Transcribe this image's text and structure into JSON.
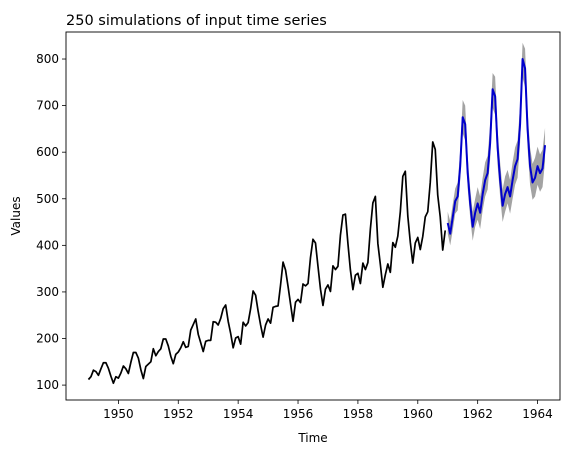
{
  "chart_data": {
    "type": "line",
    "title": "250 simulations of input time series",
    "xlabel": "Time",
    "ylabel": "Values",
    "xlim": [
      1948.25,
      1964.75
    ],
    "ylim": [
      68,
      858
    ],
    "xticks": [
      1950,
      1952,
      1954,
      1956,
      1958,
      1960,
      1962,
      1964
    ],
    "yticks": [
      100,
      200,
      300,
      400,
      500,
      600,
      700,
      800
    ],
    "grid": false,
    "legend": "none",
    "series": [
      {
        "role": "observed",
        "color": "#000000",
        "x_start": 1949.0,
        "x_step": 0.08333,
        "values": [
          112,
          118,
          132,
          129,
          121,
          135,
          148,
          148,
          136,
          119,
          104,
          118,
          115,
          126,
          141,
          135,
          125,
          149,
          170,
          170,
          158,
          133,
          114,
          140,
          145,
          150,
          178,
          163,
          172,
          178,
          199,
          199,
          184,
          162,
          146,
          166,
          171,
          180,
          193,
          181,
          183,
          218,
          230,
          242,
          209,
          191,
          172,
          194,
          196,
          196,
          236,
          235,
          229,
          243,
          264,
          272,
          237,
          211,
          180,
          201,
          204,
          188,
          235,
          227,
          234,
          264,
          302,
          293,
          259,
          229,
          203,
          229,
          242,
          233,
          267,
          269,
          270,
          315,
          364,
          347,
          312,
          274,
          237,
          278,
          284,
          277,
          317,
          313,
          318,
          374,
          413,
          405,
          355,
          306,
          271,
          306,
          315,
          301,
          356,
          348,
          355,
          422,
          465,
          467,
          404,
          347,
          305,
          336,
          340,
          318,
          362,
          348,
          363,
          435,
          491,
          505,
          404,
          359,
          310,
          337,
          360,
          342,
          406,
          396,
          420,
          472,
          548,
          559,
          463,
          407,
          362,
          405,
          417,
          391,
          419,
          461,
          472,
          535,
          622,
          606,
          508,
          461,
          390,
          432
        ]
      },
      {
        "role": "simulation-mean",
        "color": "#0000cc",
        "x_start": 1961.0,
        "x_step": 0.08333,
        "values": [
          448,
          425,
          460,
          495,
          505,
          570,
          675,
          660,
          555,
          490,
          440,
          470,
          490,
          470,
          510,
          540,
          555,
          620,
          735,
          720,
          610,
          540,
          485,
          510,
          525,
          505,
          540,
          570,
          585,
          660,
          800,
          780,
          650,
          570,
          535,
          545,
          570,
          555,
          565,
          615
        ]
      },
      {
        "role": "simulation-band",
        "color": "#999999",
        "x_start": 1961.0,
        "x_step": 0.08333,
        "lower": [
          425,
          400,
          432,
          468,
          475,
          540,
          640,
          625,
          522,
          460,
          410,
          440,
          455,
          435,
          475,
          505,
          520,
          585,
          695,
          680,
          572,
          505,
          450,
          472,
          490,
          468,
          500,
          530,
          545,
          620,
          760,
          740,
          610,
          530,
          498,
          505,
          530,
          515,
          525,
          580
        ],
        "upper": [
          472,
          452,
          488,
          522,
          535,
          602,
          712,
          700,
          590,
          522,
          472,
          500,
          525,
          505,
          545,
          578,
          592,
          660,
          770,
          762,
          648,
          578,
          520,
          548,
          562,
          540,
          578,
          610,
          625,
          700,
          835,
          822,
          690,
          610,
          575,
          588,
          612,
          595,
          605,
          652
        ]
      }
    ]
  }
}
